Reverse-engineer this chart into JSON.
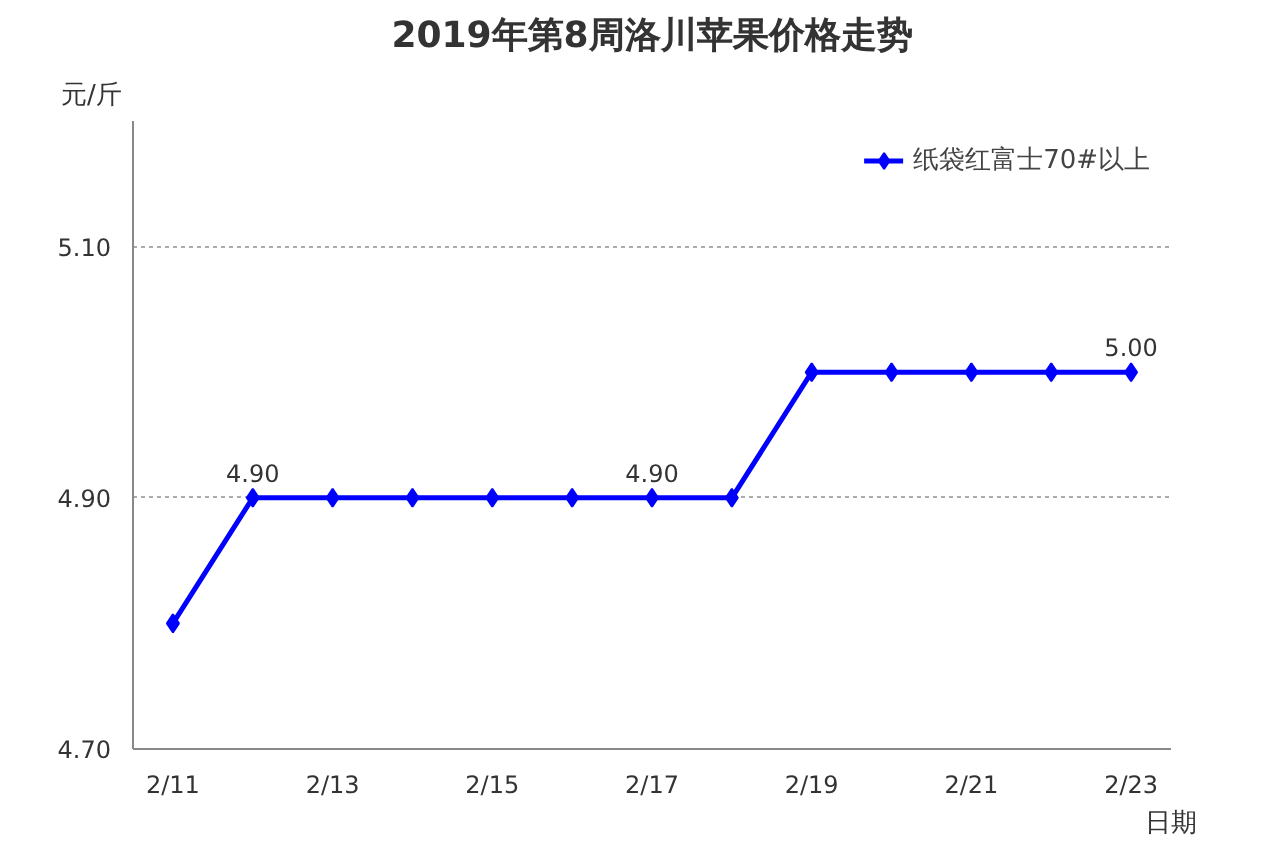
{
  "chart_data": {
    "type": "line",
    "title": "2019年第8周洛川苹果价格走势",
    "ylabel": "元/斤",
    "xlabel": "日期",
    "categories": [
      "2/11",
      null,
      "2/13",
      null,
      "2/15",
      null,
      "2/17",
      null,
      "2/19",
      null,
      "2/21",
      null,
      "2/23"
    ],
    "series": [
      {
        "name": "纸袋红富士70#以上",
        "color": "#0000ff",
        "values": [
          4.8,
          4.9,
          4.9,
          4.9,
          4.9,
          4.9,
          4.9,
          4.9,
          5.0,
          5.0,
          5.0,
          5.0,
          5.0
        ],
        "value_labels": [
          null,
          "4.90",
          null,
          null,
          null,
          null,
          "4.90",
          null,
          null,
          null,
          null,
          null,
          "5.00"
        ]
      }
    ],
    "ylim": [
      4.7,
      5.2
    ],
    "yticks": [
      {
        "value": 4.7,
        "label": "4.70"
      },
      {
        "value": 4.9,
        "label": "4.90"
      },
      {
        "value": 5.1,
        "label": "5.10"
      }
    ],
    "grid": "y",
    "legend": "top right",
    "marker": "diamond",
    "line_style": "solid"
  }
}
